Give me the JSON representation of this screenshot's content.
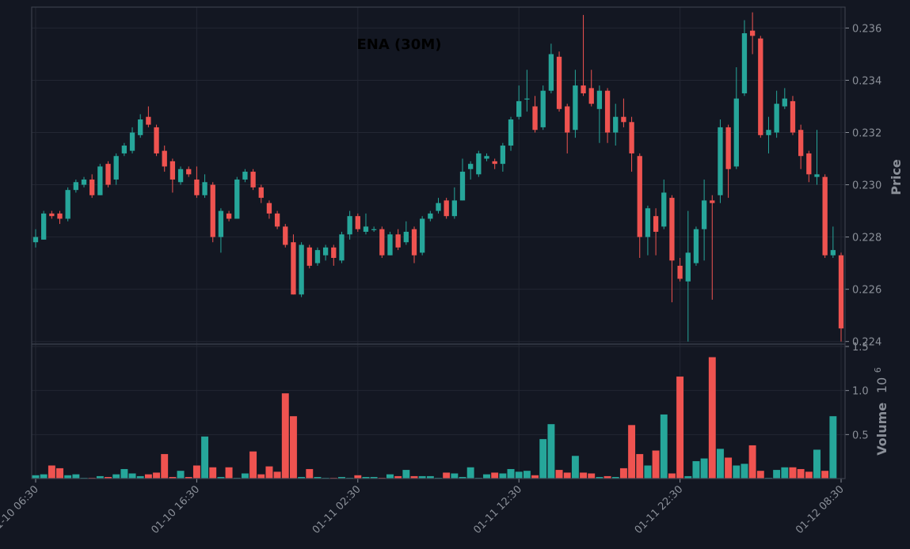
{
  "chart_data": {
    "type": "candlestick",
    "title": "ENA (30M)",
    "price_axis": {
      "label": "Price",
      "ylim": [
        0.2239,
        0.2368
      ],
      "ticks": [
        "0.224",
        "0.226",
        "0.228",
        "0.230",
        "0.232",
        "0.234",
        "0.236"
      ],
      "tick_values": [
        0.224,
        0.226,
        0.228,
        0.23,
        0.232,
        0.234,
        0.236
      ]
    },
    "volume_axis": {
      "label": "Volume",
      "multiplier_label": "10",
      "multiplier_exponent": "6",
      "ylim": [
        0,
        1.5
      ],
      "ticks": [
        "0.5",
        "1.0",
        "1.5"
      ],
      "tick_values": [
        0.5,
        1.0,
        1.5
      ]
    },
    "x_axis": {
      "ticks": [
        "01-10 06:30",
        "01-10 16:30",
        "01-11 02:30",
        "01-11 12:30",
        "01-11 22:30",
        "01-12 08:30"
      ],
      "tick_candle_index": [
        0,
        20,
        40,
        60,
        80,
        100
      ]
    },
    "colors": {
      "up": "#26a69a",
      "down": "#ef5350",
      "grid": "#232733",
      "background": "#131722",
      "text": "#8a8f98"
    },
    "grid": true,
    "candles": [
      [
        0.2278,
        0.228,
        0.2276,
        0.2283
      ],
      [
        0.2279,
        0.2289,
        0.2279,
        0.229
      ],
      [
        0.2289,
        0.2288,
        0.2287,
        0.229
      ],
      [
        0.2289,
        0.2287,
        0.2285,
        0.229
      ],
      [
        0.2287,
        0.2298,
        0.2286,
        0.2299
      ],
      [
        0.2298,
        0.2301,
        0.2297,
        0.2302
      ],
      [
        0.23,
        0.2302,
        0.2299,
        0.2303
      ],
      [
        0.2302,
        0.2296,
        0.2295,
        0.2304
      ],
      [
        0.2296,
        0.2307,
        0.2296,
        0.2308
      ],
      [
        0.2308,
        0.23,
        0.2299,
        0.2309
      ],
      [
        0.2302,
        0.2311,
        0.23,
        0.2312
      ],
      [
        0.2312,
        0.2315,
        0.2311,
        0.2316
      ],
      [
        0.2313,
        0.232,
        0.2312,
        0.2322
      ],
      [
        0.2319,
        0.2325,
        0.2318,
        0.2327
      ],
      [
        0.2326,
        0.2323,
        0.2322,
        0.233
      ],
      [
        0.2322,
        0.2312,
        0.2311,
        0.2323
      ],
      [
        0.2313,
        0.2307,
        0.2305,
        0.2315
      ],
      [
        0.2309,
        0.2302,
        0.2297,
        0.231
      ],
      [
        0.2301,
        0.2306,
        0.23,
        0.2307
      ],
      [
        0.2306,
        0.2304,
        0.2303,
        0.2307
      ],
      [
        0.2302,
        0.2296,
        0.2295,
        0.2307
      ],
      [
        0.2296,
        0.2301,
        0.2295,
        0.2304
      ],
      [
        0.23,
        0.228,
        0.2278,
        0.2301
      ],
      [
        0.228,
        0.229,
        0.2274,
        0.2291
      ],
      [
        0.2289,
        0.2287,
        0.2286,
        0.229
      ],
      [
        0.2287,
        0.2302,
        0.2287,
        0.2303
      ],
      [
        0.2302,
        0.2305,
        0.2301,
        0.2306
      ],
      [
        0.2305,
        0.2299,
        0.2298,
        0.2306
      ],
      [
        0.2299,
        0.2295,
        0.2293,
        0.23
      ],
      [
        0.2293,
        0.2289,
        0.2287,
        0.2294
      ],
      [
        0.2289,
        0.2284,
        0.2283,
        0.229
      ],
      [
        0.2284,
        0.2277,
        0.2276,
        0.2285
      ],
      [
        0.2278,
        0.2258,
        0.2258,
        0.2281
      ],
      [
        0.2258,
        0.2277,
        0.2257,
        0.2278
      ],
      [
        0.2276,
        0.2269,
        0.2268,
        0.2277
      ],
      [
        0.227,
        0.2275,
        0.2269,
        0.2276
      ],
      [
        0.2273,
        0.2276,
        0.2271,
        0.2277
      ],
      [
        0.2276,
        0.2272,
        0.2269,
        0.2277
      ],
      [
        0.2271,
        0.2281,
        0.227,
        0.2282
      ],
      [
        0.2281,
        0.2288,
        0.2279,
        0.229
      ],
      [
        0.2288,
        0.2283,
        0.2282,
        0.2289
      ],
      [
        0.2282,
        0.2284,
        0.2281,
        0.2289
      ],
      [
        0.2283,
        0.2283,
        0.2282,
        0.2284
      ],
      [
        0.2283,
        0.2273,
        0.2272,
        0.2284
      ],
      [
        0.2273,
        0.2281,
        0.2273,
        0.2282
      ],
      [
        0.2281,
        0.2276,
        0.2275,
        0.2283
      ],
      [
        0.2278,
        0.2282,
        0.2277,
        0.2286
      ],
      [
        0.2283,
        0.2273,
        0.227,
        0.2284
      ],
      [
        0.2274,
        0.2287,
        0.2273,
        0.2288
      ],
      [
        0.2287,
        0.2289,
        0.2286,
        0.229
      ],
      [
        0.229,
        0.2293,
        0.2289,
        0.2295
      ],
      [
        0.2294,
        0.2288,
        0.2287,
        0.2295
      ],
      [
        0.2288,
        0.2294,
        0.2287,
        0.2299
      ],
      [
        0.2294,
        0.2305,
        0.2294,
        0.231
      ],
      [
        0.2306,
        0.2308,
        0.2302,
        0.2309
      ],
      [
        0.2304,
        0.2312,
        0.2303,
        0.2313
      ],
      [
        0.231,
        0.2311,
        0.2309,
        0.2312
      ],
      [
        0.2309,
        0.2308,
        0.2306,
        0.231
      ],
      [
        0.2308,
        0.2315,
        0.2305,
        0.2316
      ],
      [
        0.2315,
        0.2325,
        0.2313,
        0.2326
      ],
      [
        0.2326,
        0.2332,
        0.2325,
        0.2338
      ],
      [
        0.2333,
        0.2333,
        0.2328,
        0.2344
      ],
      [
        0.233,
        0.2321,
        0.232,
        0.2334
      ],
      [
        0.2322,
        0.2336,
        0.2321,
        0.2338
      ],
      [
        0.2336,
        0.235,
        0.2335,
        0.2354
      ],
      [
        0.2349,
        0.2329,
        0.2328,
        0.2351
      ],
      [
        0.233,
        0.232,
        0.2312,
        0.2331
      ],
      [
        0.2321,
        0.2338,
        0.2318,
        0.2344
      ],
      [
        0.2338,
        0.2335,
        0.2334,
        0.2365
      ],
      [
        0.2337,
        0.2331,
        0.233,
        0.2344
      ],
      [
        0.2329,
        0.2336,
        0.2316,
        0.2338
      ],
      [
        0.2336,
        0.232,
        0.2316,
        0.2337
      ],
      [
        0.232,
        0.2326,
        0.2315,
        0.2331
      ],
      [
        0.2326,
        0.2324,
        0.2322,
        0.2333
      ],
      [
        0.2324,
        0.2312,
        0.2305,
        0.2326
      ],
      [
        0.2311,
        0.228,
        0.2272,
        0.2312
      ],
      [
        0.228,
        0.2291,
        0.2273,
        0.2292
      ],
      [
        0.2288,
        0.2282,
        0.2273,
        0.2291
      ],
      [
        0.2284,
        0.2297,
        0.2283,
        0.2302
      ],
      [
        0.2295,
        0.2271,
        0.2255,
        0.2296
      ],
      [
        0.2269,
        0.2264,
        0.2263,
        0.2272
      ],
      [
        0.2263,
        0.2274,
        0.224,
        0.229
      ],
      [
        0.227,
        0.2283,
        0.2269,
        0.2284
      ],
      [
        0.2283,
        0.2294,
        0.2271,
        0.2302
      ],
      [
        0.2294,
        0.2293,
        0.2256,
        0.2296
      ],
      [
        0.2296,
        0.2322,
        0.2293,
        0.2325
      ],
      [
        0.2322,
        0.2306,
        0.2295,
        0.2323
      ],
      [
        0.2307,
        0.2333,
        0.2306,
        0.2345
      ],
      [
        0.2335,
        0.2358,
        0.2334,
        0.2363
      ],
      [
        0.2359,
        0.2357,
        0.235,
        0.2366
      ],
      [
        0.2356,
        0.2319,
        0.2318,
        0.2357
      ],
      [
        0.2319,
        0.2321,
        0.2312,
        0.2326
      ],
      [
        0.232,
        0.2331,
        0.2318,
        0.2336
      ],
      [
        0.233,
        0.2333,
        0.2329,
        0.2337
      ],
      [
        0.2332,
        0.232,
        0.2319,
        0.2334
      ],
      [
        0.2321,
        0.2311,
        0.2306,
        0.2323
      ],
      [
        0.2312,
        0.2304,
        0.2301,
        0.2313
      ],
      [
        0.2303,
        0.2304,
        0.23,
        0.2321
      ],
      [
        0.2303,
        0.2273,
        0.2272,
        0.2304
      ],
      [
        0.2273,
        0.2275,
        0.2272,
        0.2284
      ],
      [
        0.2273,
        0.2245,
        0.224,
        0.2274
      ]
    ],
    "volumes": [
      0.04,
      0.05,
      0.15,
      0.12,
      0.04,
      0.05,
      0.01,
      0.01,
      0.03,
      0.02,
      0.05,
      0.11,
      0.06,
      0.03,
      0.05,
      0.07,
      0.28,
      0.02,
      0.09,
      0.02,
      0.15,
      0.48,
      0.13,
      0.02,
      0.13,
      0.01,
      0.06,
      0.31,
      0.05,
      0.14,
      0.08,
      0.97,
      0.71,
      0.02,
      0.11,
      0.02,
      0.01,
      0.01,
      0.02,
      0.01,
      0.04,
      0.02,
      0.02,
      0.01,
      0.05,
      0.03,
      0.1,
      0.03,
      0.03,
      0.03,
      0.01,
      0.07,
      0.06,
      0.02,
      0.13,
      0.01,
      0.05,
      0.07,
      0.06,
      0.11,
      0.08,
      0.09,
      0.04,
      0.45,
      0.62,
      0.1,
      0.07,
      0.26,
      0.07,
      0.06,
      0.02,
      0.03,
      0.02,
      0.12,
      0.61,
      0.28,
      0.15,
      0.32,
      0.73,
      0.06,
      1.16,
      0.03,
      0.2,
      0.23,
      1.38,
      0.34,
      0.24,
      0.15,
      0.17,
      0.38,
      0.09,
      0.01,
      0.1,
      0.13,
      0.13,
      0.11,
      0.08,
      0.33,
      0.09,
      0.71
    ]
  }
}
